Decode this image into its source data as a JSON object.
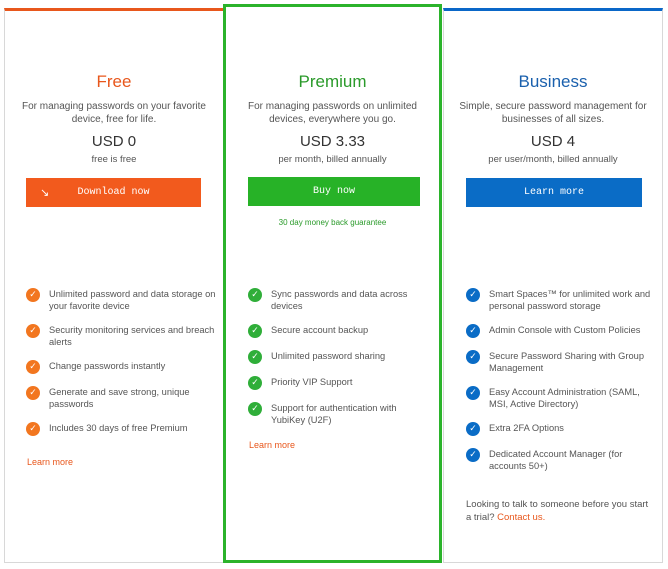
{
  "plans": {
    "free": {
      "title": "Free",
      "description": "For managing passwords on your favorite device, free for life.",
      "price": "USD 0",
      "billing": "free is free",
      "cta": "Download now",
      "features": [
        "Unlimited password and data storage on your favorite device",
        "Security monitoring services and breach alerts",
        "Change passwords instantly",
        "Generate and save strong, unique passwords",
        "Includes 30 days of free Premium"
      ],
      "learn_more": "Learn more"
    },
    "premium": {
      "title": "Premium",
      "description": "For managing passwords on unlimited devices, everywhere you go.",
      "price": "USD 3.33",
      "billing": "per month, billed annually",
      "cta": "Buy now",
      "guarantee": "30 day money back guarantee",
      "features": [
        "Sync passwords and data across devices",
        "Secure account backup",
        "Unlimited password sharing",
        "Priority VIP Support",
        "Support for authentication with YubiKey (U2F)"
      ],
      "learn_more": "Learn more"
    },
    "business": {
      "title": "Business",
      "description": "Simple, secure password management for businesses of all sizes.",
      "price": "USD 4",
      "billing": "per user/month, billed annually",
      "cta": "Learn more",
      "features": [
        "Smart Spaces™ for unlimited work and personal password storage",
        "Admin Console with Custom Policies",
        "Secure Password Sharing with Group Management",
        "Easy Account Administration (SAML, MSI, Active Directory)",
        "Extra 2FA Options",
        "Dedicated Account Manager (for accounts 50+)"
      ],
      "contact_text": "Looking to talk to someone before you start a trial?",
      "contact_link": "Contact us."
    }
  },
  "colors": {
    "free_accent": "#e8571c",
    "premium_accent": "#2bb32b",
    "business_accent": "#0a67c8"
  },
  "icons": {
    "check": "check-circle-icon",
    "download": "download-arrow-icon"
  }
}
